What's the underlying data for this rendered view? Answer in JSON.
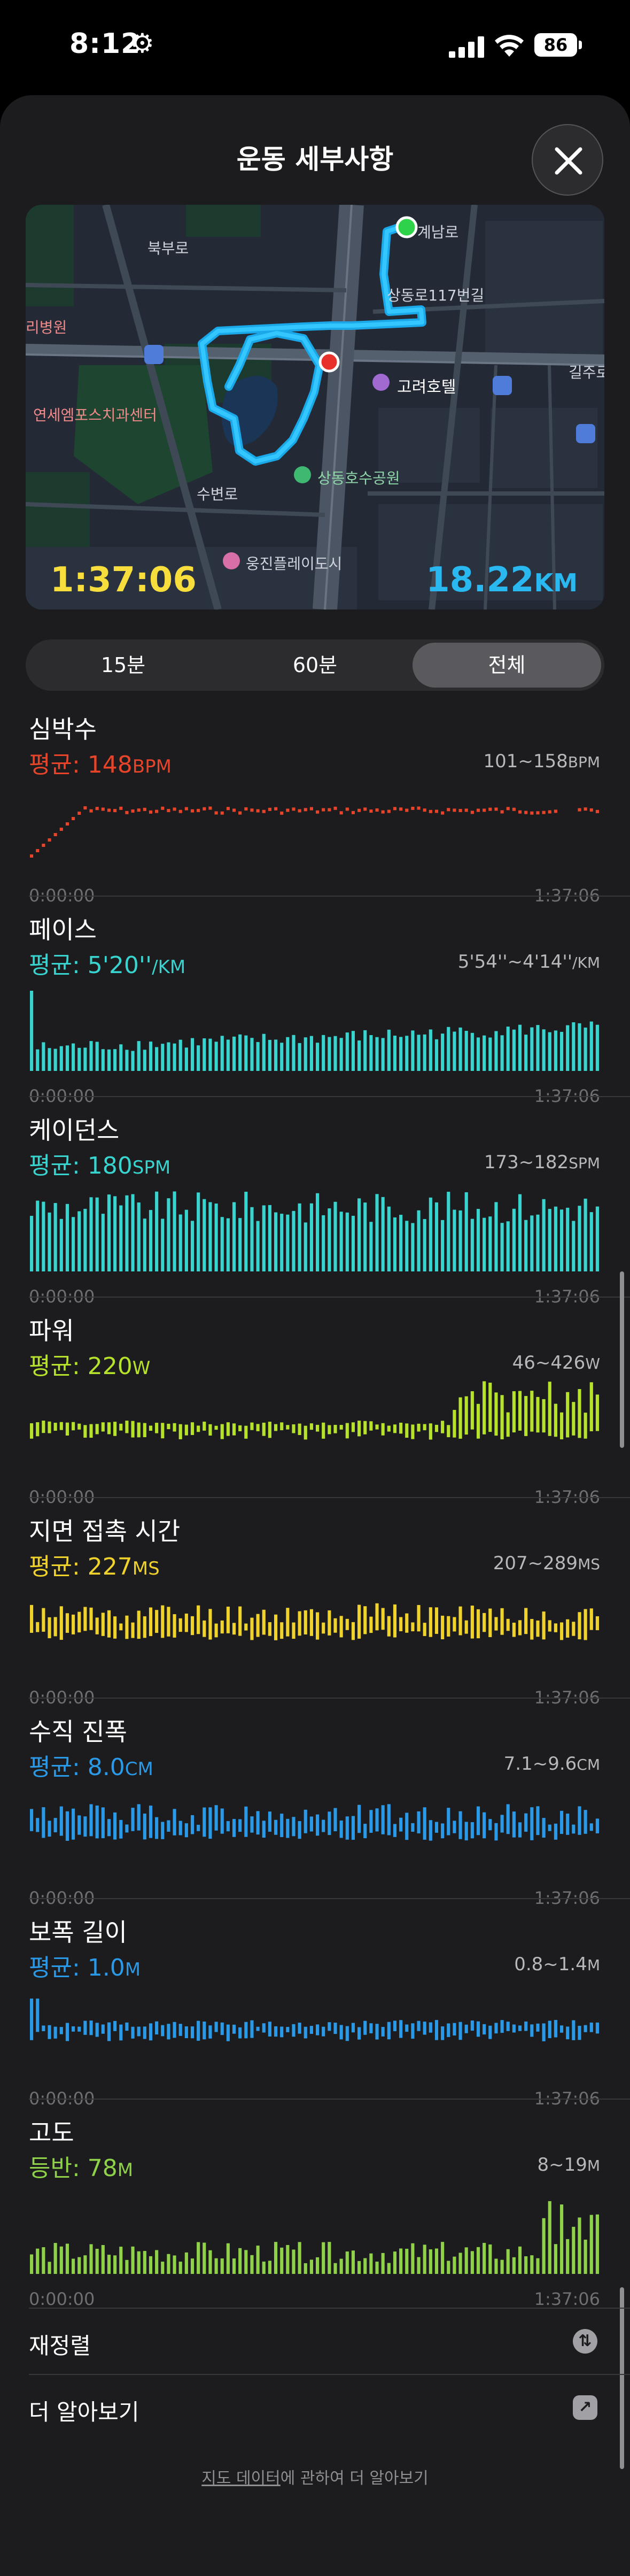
{
  "status_bar": {
    "time": "8:12",
    "battery": "86",
    "gear_icon": "gear-icon"
  },
  "sheet": {
    "title": "운동 세부사항"
  },
  "map": {
    "duration": "1:37:06",
    "distance": "18.22",
    "distance_unit": "KM",
    "labels": {
      "gyenamro": "계남로",
      "sangdong117": "상동로117번길",
      "hospital": "리병원",
      "yonsei": "연세엠포스치과센터",
      "hotel": "고려호텔",
      "gildong": "길주로",
      "sangdong_park": "상동호수공원",
      "woongjin": "웅진플레이도시",
      "sobyeonro": "수변로",
      "jijeonro": "길주로",
      "bukro": "북부로"
    }
  },
  "segments": [
    {
      "label": "15분",
      "active": false
    },
    {
      "label": "60분",
      "active": false
    },
    {
      "label": "전체",
      "active": true
    }
  ],
  "metrics": [
    {
      "title": "심박수",
      "avg_label": "평균: ",
      "avg_value": "148",
      "avg_unit": "BPM",
      "range": "101~158",
      "range_unit": "BPM",
      "color": "#e8442a",
      "start": "0:00:00",
      "end": "1:37:06",
      "style": "line"
    },
    {
      "title": "페이스",
      "avg_label": "평균: ",
      "avg_value": "5'20''",
      "avg_unit": "/KM",
      "range": "5'54''~4'14''",
      "range_unit": "/KM",
      "color": "#38d4d0",
      "start": "0:00:00",
      "end": "1:37:06",
      "style": "bars"
    },
    {
      "title": "케이던스",
      "avg_label": "평균: ",
      "avg_value": "180",
      "avg_unit": "SPM",
      "range": "173~182",
      "range_unit": "SPM",
      "color": "#38d4d0",
      "start": "0:00:00",
      "end": "1:37:06",
      "style": "bars"
    },
    {
      "title": "파워",
      "avg_label": "평균: ",
      "avg_value": "220",
      "avg_unit": "W",
      "range": "46~426",
      "range_unit": "W",
      "color": "#b6e22c",
      "start": "0:00:00",
      "end": "1:37:06",
      "style": "center"
    },
    {
      "title": "지면 접촉 시간",
      "avg_label": "평균: ",
      "avg_value": "227",
      "avg_unit": "MS",
      "range": "207~289",
      "range_unit": "MS",
      "color": "#f0d22c",
      "start": "0:00:00",
      "end": "1:37:06",
      "style": "center"
    },
    {
      "title": "수직 진폭",
      "avg_label": "평균: ",
      "avg_value": "8.0",
      "avg_unit": "CM",
      "range": "7.1~9.6",
      "range_unit": "CM",
      "color": "#2a9ae8",
      "start": "0:00:00",
      "end": "1:37:06",
      "style": "center"
    },
    {
      "title": "보폭 길이",
      "avg_label": "평균: ",
      "avg_value": "1.0",
      "avg_unit": "M",
      "range": "0.8~1.4",
      "range_unit": "M",
      "color": "#2a9ae8",
      "start": "0:00:00",
      "end": "1:37:06",
      "style": "center"
    },
    {
      "title": "고도",
      "avg_label": "등반: ",
      "avg_value": "78",
      "avg_unit": "M",
      "range": "8~19",
      "range_unit": "M",
      "color": "#8fd24a",
      "start": "0:00:00",
      "end": "1:37:06",
      "style": "bars"
    }
  ],
  "rows": {
    "reorder": {
      "label": "재정렬",
      "icon": "reorder-icon"
    },
    "learn_more": {
      "label": "더 알아보기",
      "icon": "external-link-icon"
    }
  },
  "footer": {
    "link": "지도 데이터",
    "text": "에 관하여 더 알아보기"
  }
}
